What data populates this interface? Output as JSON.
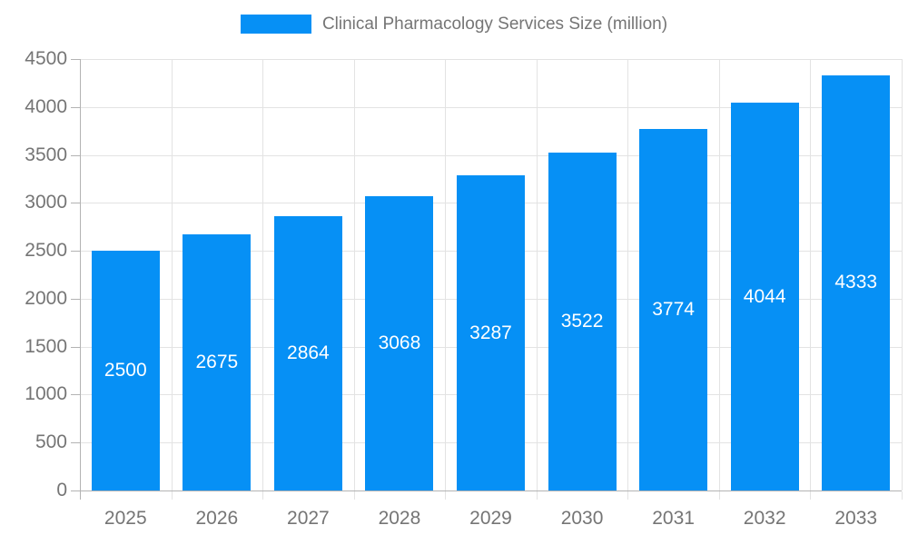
{
  "chart_data": {
    "type": "bar",
    "title": "Clinical Pharmacology Services Size (million)",
    "categories": [
      "2025",
      "2026",
      "2027",
      "2028",
      "2029",
      "2030",
      "2031",
      "2032",
      "2033"
    ],
    "values": [
      2500,
      2675,
      2864,
      3068,
      3287,
      3522,
      3774,
      4044,
      4333
    ],
    "xlabel": "",
    "ylabel": "",
    "ylim": [
      0,
      4500
    ],
    "yticks": [
      0,
      500,
      1000,
      1500,
      2000,
      2500,
      3000,
      3500,
      4000,
      4500
    ],
    "grid": true,
    "legend_position": "top-center",
    "colors": {
      "bar": "#0690f5",
      "bar_label": "#ffffff",
      "axis_line": "#b3b3b3",
      "gridline": "#e3e3e3",
      "tick_text": "#757575",
      "legend_text": "#757575"
    }
  }
}
